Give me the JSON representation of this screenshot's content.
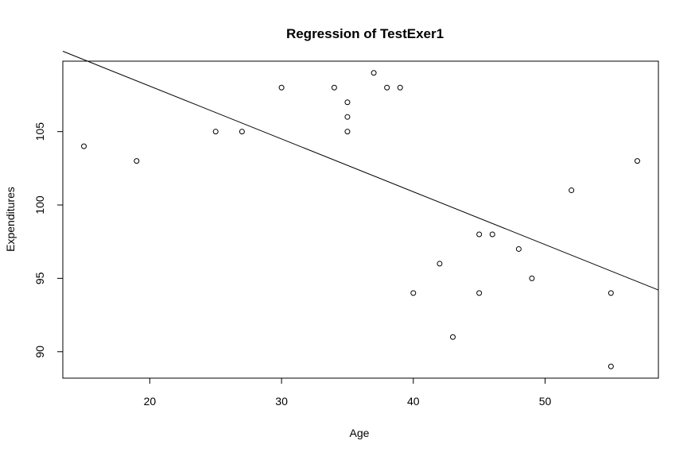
{
  "chart_data": {
    "type": "scatter",
    "title": "Regression of TestExer1",
    "xlabel": "Age",
    "ylabel": "Expenditures",
    "xlim": [
      13.4,
      58.6
    ],
    "ylim": [
      88.2,
      109.8
    ],
    "xticks": [
      20,
      30,
      40,
      50
    ],
    "yticks": [
      90,
      95,
      100,
      105
    ],
    "grid": false,
    "legend": "none",
    "points": [
      {
        "x": 15,
        "y": 104
      },
      {
        "x": 19,
        "y": 103
      },
      {
        "x": 25,
        "y": 105
      },
      {
        "x": 27,
        "y": 105
      },
      {
        "x": 30,
        "y": 108
      },
      {
        "x": 34,
        "y": 108
      },
      {
        "x": 35,
        "y": 107
      },
      {
        "x": 35,
        "y": 106
      },
      {
        "x": 35,
        "y": 105
      },
      {
        "x": 37,
        "y": 109
      },
      {
        "x": 38,
        "y": 108
      },
      {
        "x": 39,
        "y": 108
      },
      {
        "x": 40,
        "y": 94
      },
      {
        "x": 42,
        "y": 96
      },
      {
        "x": 43,
        "y": 91
      },
      {
        "x": 45,
        "y": 98
      },
      {
        "x": 45,
        "y": 94
      },
      {
        "x": 46,
        "y": 98
      },
      {
        "x": 48,
        "y": 97
      },
      {
        "x": 49,
        "y": 95
      },
      {
        "x": 52,
        "y": 101
      },
      {
        "x": 55,
        "y": 94
      },
      {
        "x": 55,
        "y": 89
      },
      {
        "x": 57,
        "y": 103
      }
    ],
    "regression_line": {
      "intercept": 115.3,
      "slope": -0.36
    }
  }
}
